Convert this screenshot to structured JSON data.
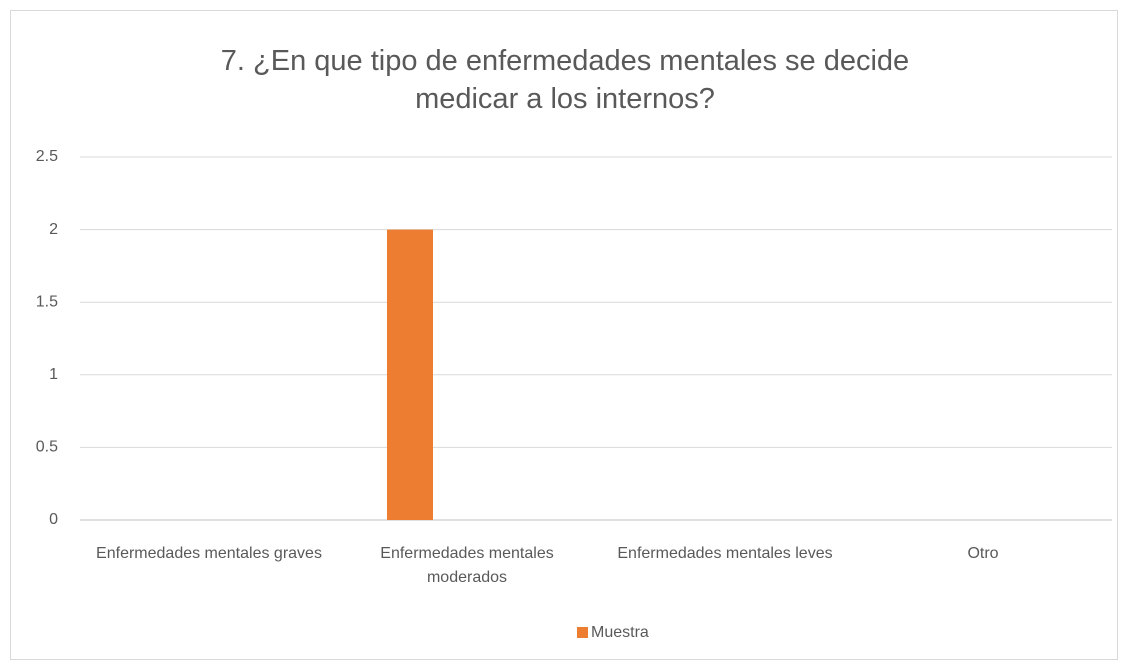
{
  "chart_data": {
    "type": "bar",
    "title": "7. ¿En que tipo de enfermedades mentales se decide medicar a los internos?",
    "categories": [
      "Enfermedades mentales graves",
      "Enfermedades mentales moderados",
      "Enfermedades mentales leves",
      "Otro"
    ],
    "series": [
      {
        "name": "Muestra",
        "color": "#ed7d31",
        "values": [
          0,
          2,
          0,
          0
        ]
      }
    ],
    "ylim": [
      0,
      2.5
    ],
    "yticks": [
      0,
      0.5,
      1,
      1.5,
      2,
      2.5
    ],
    "grid": true,
    "legend": "bottom"
  }
}
